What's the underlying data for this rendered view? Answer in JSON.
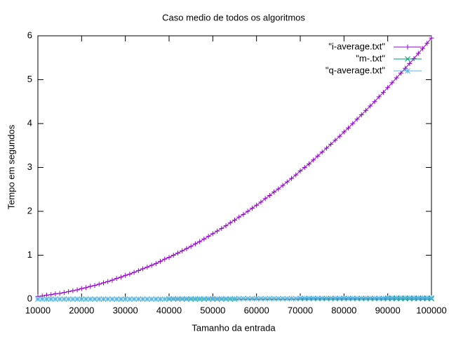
{
  "chart_data": {
    "type": "line",
    "title": "Caso medio de todos os algoritmos",
    "xlabel": "Tamanho da entrada",
    "ylabel": "Tempo em segundos",
    "x": [
      10000,
      11000,
      12000,
      13000,
      14000,
      15000,
      16000,
      17000,
      18000,
      19000,
      20000,
      21000,
      22000,
      23000,
      24000,
      25000,
      26000,
      27000,
      28000,
      29000,
      30000,
      31000,
      32000,
      33000,
      34000,
      35000,
      36000,
      37000,
      38000,
      39000,
      40000,
      41000,
      42000,
      43000,
      44000,
      45000,
      46000,
      47000,
      48000,
      49000,
      50000,
      51000,
      52000,
      53000,
      54000,
      55000,
      56000,
      57000,
      58000,
      59000,
      60000,
      61000,
      62000,
      63000,
      64000,
      65000,
      66000,
      67000,
      68000,
      69000,
      70000,
      71000,
      72000,
      73000,
      74000,
      75000,
      76000,
      77000,
      78000,
      79000,
      80000,
      81000,
      82000,
      83000,
      84000,
      85000,
      86000,
      87000,
      88000,
      89000,
      90000,
      91000,
      92000,
      93000,
      94000,
      95000,
      96000,
      97000,
      98000,
      99000,
      100000
    ],
    "series": [
      {
        "name": "\"i-average.txt\"",
        "color": "#9400d3",
        "marker": "plus",
        "values": [
          0.06,
          0.07,
          0.09,
          0.1,
          0.12,
          0.13,
          0.15,
          0.17,
          0.19,
          0.21,
          0.24,
          0.26,
          0.29,
          0.31,
          0.34,
          0.37,
          0.4,
          0.43,
          0.47,
          0.5,
          0.54,
          0.57,
          0.61,
          0.65,
          0.69,
          0.73,
          0.77,
          0.81,
          0.86,
          0.91,
          0.95,
          1.0,
          1.05,
          1.1,
          1.15,
          1.2,
          1.26,
          1.31,
          1.37,
          1.43,
          1.49,
          1.55,
          1.61,
          1.67,
          1.74,
          1.8,
          1.87,
          1.93,
          2.0,
          2.07,
          2.14,
          2.21,
          2.29,
          2.36,
          2.44,
          2.51,
          2.59,
          2.67,
          2.75,
          2.83,
          2.92,
          3.0,
          3.08,
          3.17,
          3.26,
          3.35,
          3.44,
          3.53,
          3.62,
          3.71,
          3.81,
          3.9,
          4.0,
          4.1,
          4.2,
          4.3,
          4.4,
          4.5,
          4.61,
          4.71,
          4.82,
          4.93,
          5.04,
          5.15,
          5.26,
          5.37,
          5.48,
          5.6,
          5.71,
          5.83,
          5.95
        ]
      },
      {
        "name": "\"m-.txt\"",
        "color": "#009e73",
        "marker": "cross",
        "values": [
          0,
          0,
          0,
          0,
          0,
          0,
          0,
          0,
          0,
          0,
          0,
          0,
          0,
          0,
          0,
          0,
          0,
          0,
          0,
          0,
          0,
          0,
          0,
          0,
          0,
          0,
          0,
          0,
          0,
          0,
          0,
          0,
          0,
          0,
          0,
          0,
          0,
          0,
          0,
          0,
          0,
          0,
          0,
          0,
          0,
          0,
          0.01,
          0.01,
          0.01,
          0.01,
          0.01,
          0.01,
          0.01,
          0.01,
          0.01,
          0.01,
          0.01,
          0.01,
          0.01,
          0.01,
          0.01,
          0.01,
          0.01,
          0.01,
          0.01,
          0.01,
          0.01,
          0.01,
          0.01,
          0.01,
          0.01,
          0.01,
          0.01,
          0.01,
          0.01,
          0.01,
          0.01,
          0.01,
          0.01,
          0.01,
          0.01,
          0.01,
          0.01,
          0.01,
          0.01,
          0.01,
          0.01,
          0.01,
          0.01,
          0.01,
          0.01
        ]
      },
      {
        "name": "\"q-average.txt\"",
        "color": "#56b4e9",
        "marker": "star",
        "values": [
          0,
          0,
          0,
          0,
          0,
          0,
          0,
          0,
          0,
          0,
          0,
          0,
          0,
          0,
          0,
          0,
          0,
          0,
          0,
          0,
          0,
          0,
          0,
          0,
          0,
          0,
          0,
          0,
          0,
          0,
          0.01,
          0.01,
          0.01,
          0.01,
          0.01,
          0.01,
          0.01,
          0.01,
          0.01,
          0.01,
          0.01,
          0.01,
          0.01,
          0.01,
          0.01,
          0.01,
          0.01,
          0.01,
          0.01,
          0.01,
          0.01,
          0.01,
          0.01,
          0.01,
          0.01,
          0.01,
          0.01,
          0.01,
          0.01,
          0.01,
          0.02,
          0.02,
          0.02,
          0.02,
          0.02,
          0.02,
          0.02,
          0.02,
          0.02,
          0.02,
          0.02,
          0.02,
          0.02,
          0.02,
          0.02,
          0.02,
          0.02,
          0.02,
          0.02,
          0.02,
          0.03,
          0.03,
          0.03,
          0.03,
          0.03,
          0.03,
          0.03,
          0.03,
          0.03,
          0.03,
          0.03
        ]
      }
    ],
    "xlim": [
      10000,
      100000
    ],
    "xticks": [
      10000,
      20000,
      30000,
      40000,
      50000,
      60000,
      70000,
      80000,
      90000,
      100000
    ],
    "ylim": [
      0,
      6
    ],
    "yticks": [
      0,
      1,
      2,
      3,
      4,
      5,
      6
    ],
    "grid": false,
    "legend": "top-right"
  }
}
